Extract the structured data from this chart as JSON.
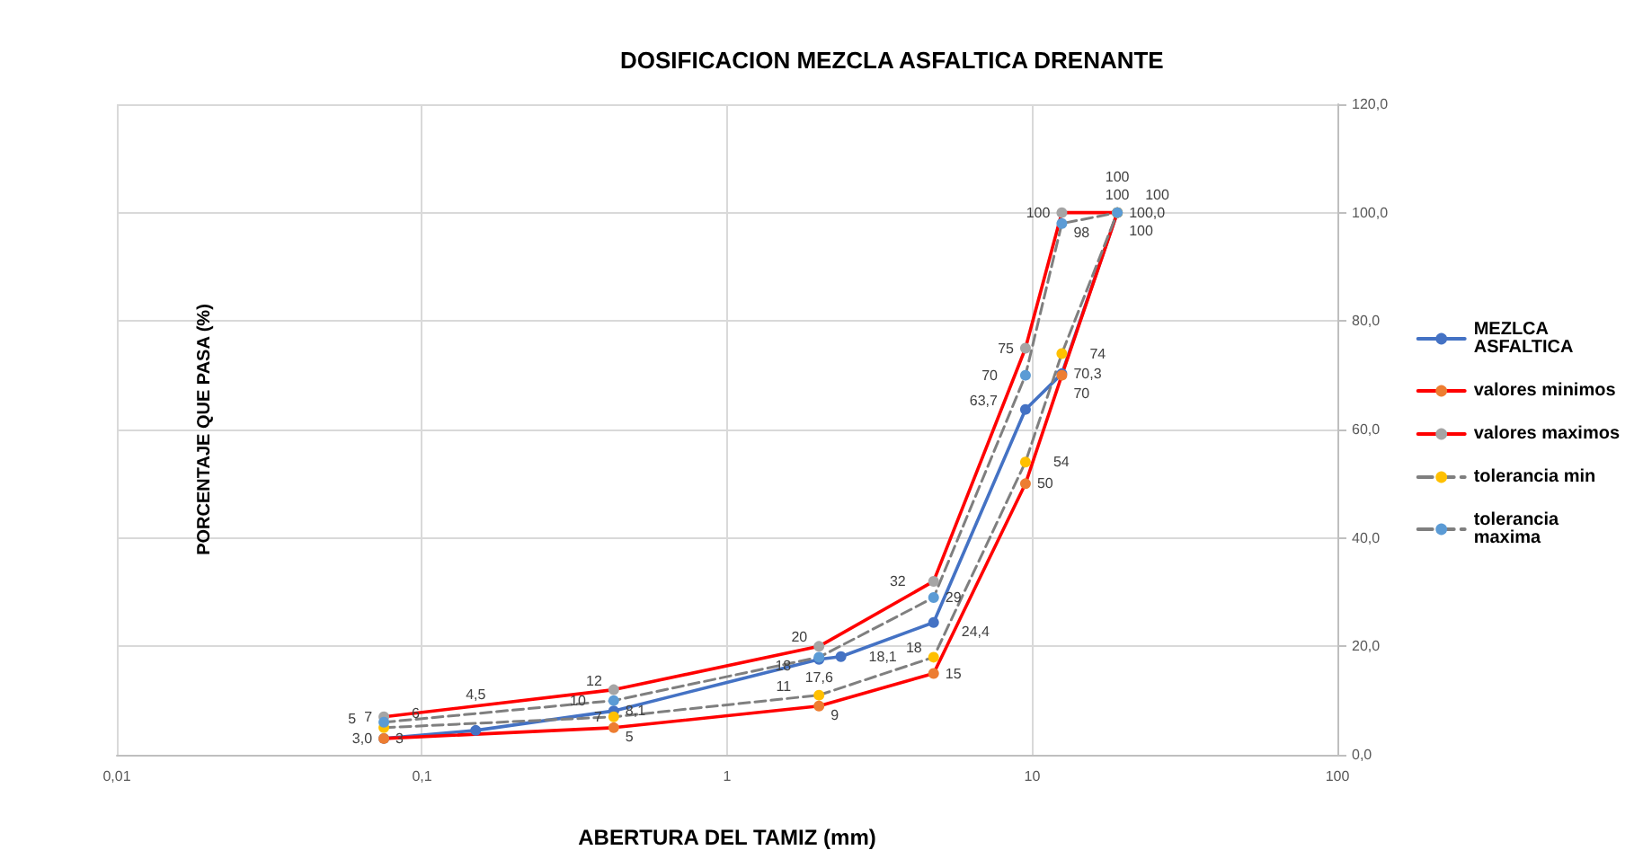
{
  "chart_data": {
    "type": "line",
    "title": "DOSIFICACION MEZCLA ASFALTICA DRENANTE",
    "xlabel": "ABERTURA DEL TAMIZ (mm)",
    "ylabel": "PORCENTAJE QUE PASA (%)",
    "log": "x",
    "xlim": [
      0.01,
      100
    ],
    "xticks": [
      {
        "value": 0.01,
        "label": "0,01"
      },
      {
        "value": 0.1,
        "label": "0,1"
      },
      {
        "value": 1,
        "label": "1"
      },
      {
        "value": 10,
        "label": "10"
      },
      {
        "value": 100,
        "label": "100"
      }
    ],
    "ylim": [
      0,
      120
    ],
    "yticks": [
      {
        "value": 0,
        "label": "0,0"
      },
      {
        "value": 20,
        "label": "20,0"
      },
      {
        "value": 40,
        "label": "40,0"
      },
      {
        "value": 60,
        "label": "60,0"
      },
      {
        "value": 80,
        "label": "80,0"
      },
      {
        "value": 100,
        "label": "100,0"
      },
      {
        "value": 120,
        "label": "120,0"
      }
    ],
    "grid": true,
    "legend": "right",
    "marker": "circle",
    "series": [
      {
        "name": "MEZLCA ASFALTICA",
        "color": "#4472c4",
        "colors": [
          "#4472c4",
          "#4472c4",
          "#4472c4",
          "#4472c4",
          "#4472c4",
          "#4472c4",
          "#4472c4",
          "#4472c4",
          "#4472c4"
        ],
        "line_style": "solid",
        "x": [
          0.075,
          0.15,
          0.425,
          2,
          2.36,
          4.75,
          9.5,
          12.5,
          19
        ],
        "values": [
          3.0,
          4.5,
          8.1,
          17.6,
          18.1,
          24.4,
          63.7,
          70.3,
          100
        ],
        "value_labels": [
          "3,0",
          "4,5",
          "8,1",
          "17,6",
          "18,1",
          "24,4",
          "63,7",
          "70,3",
          "100,0"
        ]
      },
      {
        "name": "valores minimos",
        "color": "#ff0000",
        "colors": [
          "#ed7d31",
          "#ed7d31",
          "#ed7d31",
          "#ed7d31",
          "#ed7d31",
          "#ed7d31",
          "#ed7d31"
        ],
        "line_style": "solid",
        "x": [
          0.075,
          0.425,
          2,
          4.75,
          9.5,
          12.5,
          19
        ],
        "values": [
          3,
          5,
          9,
          15,
          50,
          70,
          100
        ],
        "value_labels": [
          "3",
          "5",
          "9",
          "15",
          "50",
          "70",
          "100"
        ]
      },
      {
        "name": "valores maximos",
        "color": "#ff0000",
        "colors": [
          "#a5a5a5",
          "#a5a5a5",
          "#a5a5a5",
          "#a5a5a5",
          "#a5a5a5",
          "#a5a5a5",
          "#a5a5a5"
        ],
        "line_style": "solid",
        "x": [
          0.075,
          0.425,
          2,
          4.75,
          9.5,
          12.5,
          19
        ],
        "values": [
          7,
          12,
          20,
          32,
          75,
          100,
          100
        ],
        "value_labels": [
          "7",
          "12",
          "20",
          "32",
          "75",
          "100",
          "100"
        ]
      },
      {
        "name": "tolerancia min",
        "color": "#7f7f7f",
        "colors": [
          "#ffc000",
          "#ffc000",
          "#ffc000",
          "#ffc000",
          "#ffc000",
          "#ffc000",
          "#ffc000"
        ],
        "line_style": "dashed",
        "x": [
          0.075,
          0.425,
          2,
          4.75,
          9.5,
          12.5,
          19
        ],
        "values": [
          5,
          7,
          11,
          18,
          54,
          74,
          100
        ],
        "value_labels": [
          "5",
          "7",
          "11",
          "18",
          "54",
          "74",
          "100"
        ]
      },
      {
        "name": "tolerancia maxima",
        "color": "#7f7f7f",
        "colors": [
          "#5b9bd5",
          "#5b9bd5",
          "#5b9bd5",
          "#5b9bd5",
          "#5b9bd5",
          "#5b9bd5",
          "#5b9bd5"
        ],
        "line_style": "dashed",
        "x": [
          0.075,
          0.425,
          2,
          4.75,
          9.5,
          12.5,
          19
        ],
        "values": [
          6,
          10,
          18,
          29,
          70,
          98,
          100
        ],
        "value_labels": [
          "6",
          "10",
          "18",
          "29",
          "70",
          "98",
          "100"
        ]
      }
    ]
  }
}
